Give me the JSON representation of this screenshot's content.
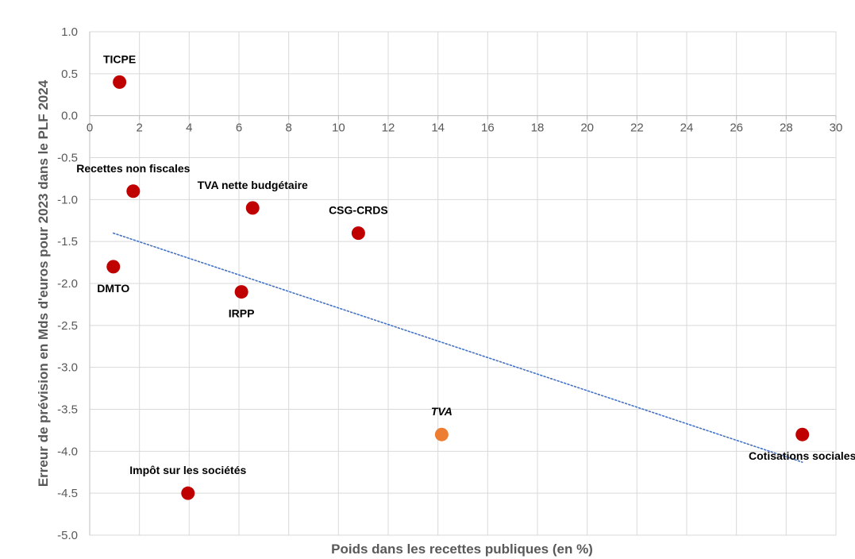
{
  "chart_data": {
    "type": "scatter",
    "title": "",
    "xlabel": "Poids dans les recettes publiques (en %)",
    "ylabel": "Erreur de prévision en Mds d'euros pour 2023 dans le PLF 2024",
    "xlim": [
      0,
      30
    ],
    "ylim": [
      -5.0,
      1.0
    ],
    "x_ticks": [
      0,
      2,
      4,
      6,
      8,
      10,
      12,
      14,
      16,
      18,
      20,
      22,
      24,
      26,
      28,
      30
    ],
    "x_tick_labels": [
      "0",
      "2",
      "4",
      "6",
      "8",
      "10",
      "12",
      "14",
      "16",
      "18",
      "20",
      "22",
      "24",
      "26",
      "28",
      "30"
    ],
    "y_ticks": [
      1.0,
      0.5,
      0.0,
      -0.5,
      -1.0,
      -1.5,
      -2.0,
      -2.5,
      -3.0,
      -3.5,
      -4.0,
      -4.5,
      -5.0
    ],
    "y_tick_labels": [
      "1.0",
      "0.5",
      "0.0",
      "-0.5",
      "-1.0",
      "-1.5",
      "-2.0",
      "-2.5",
      "-3.0",
      "-3.5",
      "-4.0",
      "-4.5",
      "-5.0"
    ],
    "grid": true,
    "x_axis_at_y": 0,
    "points": [
      {
        "label": "TICPE",
        "x": 1.2,
        "y": 0.4,
        "color": "#C00000",
        "italic": false,
        "label_pos": "above"
      },
      {
        "label": "Recettes non fiscales",
        "x": 1.75,
        "y": -0.9,
        "color": "#C00000",
        "italic": false,
        "label_pos": "above"
      },
      {
        "label": "DMTO",
        "x": 0.95,
        "y": -1.8,
        "color": "#C00000",
        "italic": false,
        "label_pos": "below"
      },
      {
        "label": "TVA nette budgétaire",
        "x": 6.55,
        "y": -1.1,
        "color": "#C00000",
        "italic": false,
        "label_pos": "above"
      },
      {
        "label": "IRPP",
        "x": 6.1,
        "y": -2.1,
        "color": "#C00000",
        "italic": false,
        "label_pos": "below"
      },
      {
        "label": "CSG-CRDS",
        "x": 10.8,
        "y": -1.4,
        "color": "#C00000",
        "italic": false,
        "label_pos": "above"
      },
      {
        "label": "TVA",
        "x": 14.15,
        "y": -3.8,
        "color": "#ED7D31",
        "italic": true,
        "label_pos": "above"
      },
      {
        "label": "Impôt sur les sociétés",
        "x": 3.95,
        "y": -4.5,
        "color": "#C00000",
        "italic": false,
        "label_pos": "above"
      },
      {
        "label": "Cotisations sociales",
        "x": 28.65,
        "y": -3.8,
        "color": "#C00000",
        "italic": false,
        "label_pos": "below"
      }
    ],
    "trendline": {
      "type": "linear",
      "x_start": 0.95,
      "y_start": -1.4,
      "x_end": 28.65,
      "y_end": -4.13,
      "color": "#4472C4",
      "style": "dotted"
    }
  }
}
